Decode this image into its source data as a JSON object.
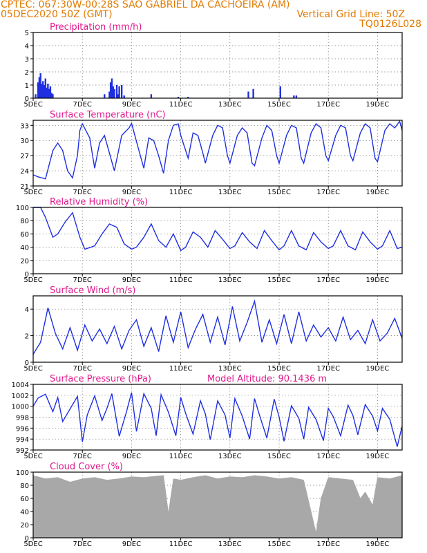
{
  "header": {
    "line1_left": "CPTEC:   067:30W-00:28S  SAO GABRIEL DA CACHOEIRA (AM)",
    "line2_left": "05DEC2020 50Z (GMT)",
    "line2_right": "Vertical Grid Line: 50Z",
    "line3_right": "TQ0126L028"
  },
  "colors": {
    "header": "#e07a00",
    "title": "#e0198c",
    "series": "#1f2fe0",
    "cloud": "#a8a8a8",
    "grid": "#777777"
  },
  "x_tick_labels": [
    "5DEC",
    "7DEC",
    "9DEC",
    "11DEC",
    "13DEC",
    "15DEC",
    "17DEC",
    "19DEC"
  ],
  "chart_data": [
    {
      "type": "bar",
      "title": "Precipitation (mm/h)",
      "ylim": [
        0,
        5
      ],
      "yticks": [
        0,
        1,
        2,
        3,
        4,
        5
      ],
      "xrange_days": [
        5,
        20
      ],
      "x": [
        5.1,
        5.2,
        5.25,
        5.3,
        5.35,
        5.4,
        5.45,
        5.5,
        5.55,
        5.6,
        5.65,
        5.7,
        5.75,
        5.8,
        7.9,
        8.1,
        8.15,
        8.2,
        8.25,
        8.3,
        8.4,
        8.45,
        8.5,
        8.6,
        8.7,
        9.8,
        10.9,
        11.3,
        13.75,
        13.95,
        15.05,
        15.6,
        15.7
      ],
      "values": [
        0.3,
        1.2,
        1.6,
        1.9,
        1.1,
        1.3,
        1.0,
        1.5,
        0.8,
        1.1,
        0.7,
        0.9,
        0.4,
        0.3,
        0.3,
        0.5,
        1.2,
        1.5,
        0.9,
        0.7,
        1.0,
        0.3,
        0.9,
        1.0,
        0.2,
        0.3,
        0.1,
        0.1,
        0.5,
        0.7,
        0.9,
        0.2,
        0.2
      ]
    },
    {
      "type": "line",
      "title": "Surface Temperature (nC)",
      "ylim": [
        21,
        34
      ],
      "yticks": [
        21,
        24,
        27,
        30,
        33
      ],
      "xrange_days": [
        5,
        20
      ],
      "x": [
        5,
        5.2,
        5.5,
        5.8,
        6.0,
        6.2,
        6.4,
        6.6,
        6.8,
        6.9,
        7.0,
        7.3,
        7.5,
        7.7,
        7.9,
        8.1,
        8.3,
        8.6,
        8.9,
        9.0,
        9.3,
        9.5,
        9.7,
        9.9,
        10.1,
        10.3,
        10.5,
        10.7,
        10.9,
        11.0,
        11.3,
        11.5,
        11.7,
        11.9,
        12.0,
        12.3,
        12.5,
        12.7,
        12.9,
        13.0,
        13.3,
        13.5,
        13.7,
        13.9,
        14.0,
        14.3,
        14.5,
        14.7,
        14.9,
        15.0,
        15.3,
        15.5,
        15.7,
        15.9,
        16.0,
        16.3,
        16.5,
        16.7,
        16.9,
        17.0,
        17.3,
        17.5,
        17.7,
        17.9,
        18.0,
        18.3,
        18.5,
        18.7,
        18.9,
        19.0,
        19.3,
        19.5,
        19.7,
        19.9,
        20
      ],
      "values": [
        23.2,
        22.8,
        22.4,
        28.0,
        29.5,
        28.0,
        24.0,
        22.6,
        27.0,
        32.0,
        33.3,
        30.5,
        24.5,
        29.5,
        31.0,
        27.5,
        24.0,
        31.0,
        32.5,
        33.4,
        28.0,
        24.5,
        30.5,
        30.0,
        27.0,
        23.5,
        30.0,
        33.0,
        33.3,
        31.0,
        26.5,
        31.5,
        31.0,
        27.5,
        25.5,
        31.0,
        33.0,
        32.5,
        27.0,
        25.5,
        31.0,
        32.5,
        31.5,
        25.5,
        25.0,
        30.5,
        33.0,
        32.0,
        27.0,
        25.5,
        31.0,
        33.0,
        32.5,
        26.5,
        25.5,
        31.5,
        33.3,
        32.5,
        27.0,
        26.0,
        31.0,
        33.0,
        32.5,
        27.0,
        26.0,
        31.5,
        33.3,
        32.5,
        26.5,
        25.8,
        32.0,
        33.3,
        32.5,
        33.8,
        32.0
      ]
    },
    {
      "type": "line",
      "title": "Relative Humidity (%)",
      "ylim": [
        0,
        100
      ],
      "yticks": [
        0,
        20,
        40,
        60,
        80,
        100
      ],
      "xrange_days": [
        5,
        20
      ],
      "x": [
        5,
        5.3,
        5.5,
        5.8,
        6.0,
        6.3,
        6.6,
        6.9,
        7.1,
        7.5,
        7.8,
        8.1,
        8.4,
        8.7,
        9.0,
        9.2,
        9.5,
        9.8,
        10.1,
        10.4,
        10.7,
        11.0,
        11.2,
        11.5,
        11.8,
        12.1,
        12.4,
        12.7,
        13.0,
        13.2,
        13.5,
        13.8,
        14.1,
        14.4,
        14.7,
        15.0,
        15.2,
        15.5,
        15.8,
        16.1,
        16.4,
        16.7,
        17.0,
        17.2,
        17.5,
        17.8,
        18.1,
        18.4,
        18.7,
        19.0,
        19.2,
        19.5,
        19.8,
        20
      ],
      "values": [
        100,
        100,
        85,
        55,
        60,
        78,
        92,
        55,
        37,
        42,
        60,
        75,
        70,
        45,
        37,
        40,
        55,
        75,
        50,
        40,
        60,
        35,
        40,
        63,
        55,
        40,
        65,
        52,
        38,
        42,
        62,
        48,
        38,
        65,
        50,
        36,
        42,
        65,
        42,
        36,
        62,
        48,
        38,
        42,
        65,
        42,
        36,
        63,
        48,
        37,
        42,
        65,
        38,
        40
      ]
    },
    {
      "type": "line",
      "title": "Surface Wind (m/s)",
      "ylim": [
        0,
        5
      ],
      "yticks": [
        0,
        2,
        4
      ],
      "xrange_days": [
        5,
        20
      ],
      "x": [
        5,
        5.3,
        5.6,
        5.9,
        6.2,
        6.5,
        6.8,
        7.1,
        7.4,
        7.7,
        8.0,
        8.3,
        8.6,
        8.9,
        9.2,
        9.5,
        9.8,
        10.1,
        10.4,
        10.7,
        11.0,
        11.3,
        11.6,
        11.9,
        12.2,
        12.5,
        12.8,
        13.1,
        13.4,
        13.7,
        14.0,
        14.3,
        14.6,
        14.9,
        15.2,
        15.5,
        15.8,
        16.1,
        16.4,
        16.7,
        17.0,
        17.3,
        17.6,
        17.9,
        18.2,
        18.5,
        18.8,
        19.1,
        19.4,
        19.7,
        20
      ],
      "values": [
        0.6,
        1.5,
        4.1,
        2.2,
        1.0,
        2.6,
        0.9,
        2.8,
        1.6,
        2.5,
        1.4,
        2.7,
        1.0,
        2.4,
        3.2,
        1.2,
        2.6,
        0.8,
        3.5,
        1.5,
        3.8,
        1.1,
        2.5,
        3.6,
        1.5,
        3.4,
        1.3,
        4.2,
        1.6,
        3.0,
        4.6,
        1.5,
        3.2,
        1.4,
        3.6,
        1.4,
        3.8,
        1.6,
        2.8,
        1.9,
        2.6,
        1.6,
        3.4,
        1.7,
        2.4,
        1.4,
        3.2,
        1.6,
        2.2,
        3.3,
        1.8
      ]
    },
    {
      "type": "line",
      "title": "Surface Pressure (hPa)",
      "annotation": "Model Altitude: 90.1436 m",
      "ylim": [
        992,
        1004
      ],
      "yticks": [
        992,
        994,
        996,
        998,
        1000,
        1002,
        1004
      ],
      "xrange_days": [
        5,
        20
      ],
      "x": [
        5,
        5.2,
        5.5,
        5.8,
        6.0,
        6.2,
        6.5,
        6.8,
        7.0,
        7.2,
        7.5,
        7.8,
        8.0,
        8.2,
        8.5,
        8.8,
        9.0,
        9.2,
        9.5,
        9.8,
        10.0,
        10.2,
        10.5,
        10.8,
        11.0,
        11.2,
        11.5,
        11.8,
        12.0,
        12.2,
        12.5,
        12.8,
        13.0,
        13.2,
        13.5,
        13.8,
        14.0,
        14.2,
        14.5,
        14.8,
        15.0,
        15.2,
        15.5,
        15.8,
        16.0,
        16.2,
        16.5,
        16.8,
        17.0,
        17.2,
        17.5,
        17.8,
        18.0,
        18.2,
        18.5,
        18.8,
        19.0,
        19.2,
        19.5,
        19.8,
        20
      ],
      "values": [
        1000,
        1001.5,
        1002.2,
        999,
        1001.6,
        997.2,
        999.5,
        1001.8,
        993.5,
        998.4,
        1001.9,
        997.4,
        999.6,
        1002.3,
        994.5,
        999.1,
        1002.5,
        995.4,
        1002.3,
        999.6,
        994.6,
        1002.1,
        998.9,
        994.6,
        1001.6,
        998.7,
        994.9,
        1001.0,
        998.6,
        993.9,
        1001.0,
        998.4,
        994.2,
        1001.4,
        998.2,
        994.0,
        1001.4,
        998.4,
        994.2,
        1001.3,
        998.0,
        993.6,
        1000.1,
        997.8,
        994.0,
        999.8,
        997.6,
        993.7,
        999.6,
        998.1,
        994.6,
        1000.2,
        998.3,
        994.8,
        1000.3,
        998.2,
        995.5,
        999.6,
        997.6,
        992.6,
        996.4
      ]
    },
    {
      "type": "area",
      "title": "Cloud Cover (%)",
      "ylim": [
        0,
        100
      ],
      "yticks": [
        0,
        20,
        40,
        60,
        80,
        100
      ],
      "xrange_days": [
        5,
        20
      ],
      "x": [
        5,
        5.5,
        6,
        6.5,
        7,
        7.5,
        8,
        8.5,
        9,
        9.5,
        10,
        10.3,
        10.5,
        10.7,
        11,
        11.5,
        12,
        12.5,
        13,
        13.5,
        14,
        14.5,
        15,
        15.5,
        16,
        16.3,
        16.5,
        16.7,
        17,
        17.5,
        18,
        18.3,
        18.5,
        18.8,
        19,
        19.5,
        20
      ],
      "values": [
        95,
        90,
        92,
        85,
        90,
        92,
        88,
        90,
        93,
        92,
        94,
        95,
        38,
        90,
        88,
        92,
        95,
        90,
        93,
        92,
        95,
        93,
        90,
        92,
        88,
        40,
        8,
        60,
        92,
        90,
        88,
        60,
        70,
        50,
        92,
        90,
        95
      ]
    }
  ]
}
